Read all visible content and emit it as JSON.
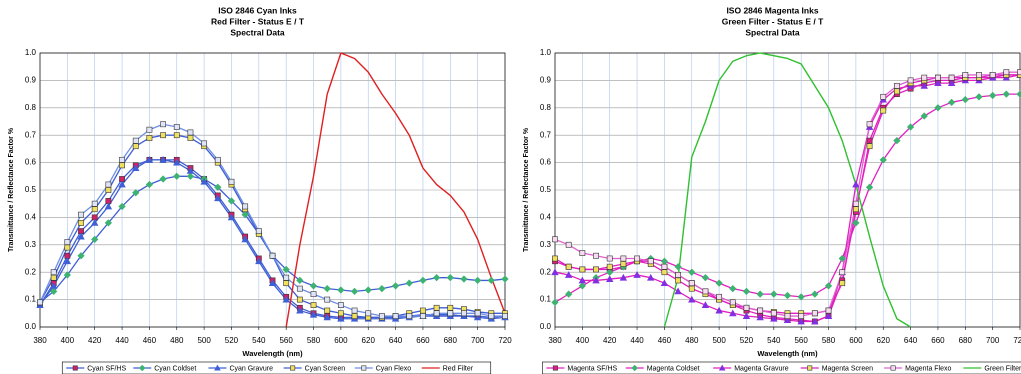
{
  "chart_data": [
    {
      "type": "line",
      "title": [
        "ISO 2846 Cyan Inks",
        "Red Filter - Status E / T",
        "Spectral Data"
      ],
      "x_label": "Wavelength (nm)",
      "y_label": "Transmittance / Reflectance Factor %",
      "x": [
        380,
        390,
        400,
        410,
        420,
        430,
        440,
        450,
        460,
        470,
        480,
        490,
        500,
        510,
        520,
        530,
        540,
        550,
        560,
        570,
        580,
        590,
        600,
        610,
        620,
        630,
        640,
        650,
        660,
        670,
        680,
        690,
        700,
        710,
        720
      ],
      "xlim": [
        380,
        720
      ],
      "xticks": [
        380,
        400,
        420,
        440,
        460,
        480,
        500,
        520,
        540,
        560,
        580,
        600,
        620,
        640,
        660,
        680,
        700,
        720
      ],
      "ylim": [
        0,
        1
      ],
      "yticks": [
        {
          "value": 0,
          "label": "0.0"
        },
        0.1,
        0.2,
        0.3,
        0.4,
        0.5,
        0.6,
        0.7,
        0.8,
        0.9,
        {
          "value": 1,
          "label": "1.0"
        }
      ],
      "grid": true,
      "legend": "bottom",
      "series": [
        {
          "name": "Cyan SF/HS",
          "color": "#3f5fd6",
          "marker": "square",
          "marker_color": "#d0206a",
          "values": [
            0.08,
            0.16,
            0.26,
            0.35,
            0.4,
            0.46,
            0.54,
            0.59,
            0.61,
            0.61,
            0.61,
            0.58,
            0.54,
            0.48,
            0.41,
            0.33,
            0.25,
            0.17,
            0.11,
            0.07,
            0.05,
            0.04,
            0.035,
            0.035,
            0.035,
            0.035,
            0.035,
            0.04,
            0.045,
            0.045,
            0.045,
            0.04,
            0.04,
            0.035,
            0.04
          ]
        },
        {
          "name": "Cyan Coldset",
          "color": "#3f5fd6",
          "marker": "diamond",
          "marker_color": "#3cb371",
          "values": [
            0.09,
            0.13,
            0.19,
            0.26,
            0.32,
            0.38,
            0.44,
            0.49,
            0.52,
            0.54,
            0.55,
            0.55,
            0.54,
            0.51,
            0.46,
            0.41,
            0.34,
            0.26,
            0.21,
            0.17,
            0.15,
            0.14,
            0.135,
            0.13,
            0.135,
            0.14,
            0.15,
            0.16,
            0.17,
            0.18,
            0.18,
            0.175,
            0.17,
            0.17,
            0.175
          ]
        },
        {
          "name": "Cyan Gravure",
          "color": "#3f5fd6",
          "marker": "triangle",
          "marker_color": "#3f5fd6",
          "values": [
            0.08,
            0.15,
            0.24,
            0.33,
            0.38,
            0.44,
            0.52,
            0.58,
            0.61,
            0.61,
            0.6,
            0.57,
            0.53,
            0.47,
            0.4,
            0.32,
            0.24,
            0.16,
            0.1,
            0.06,
            0.045,
            0.035,
            0.03,
            0.03,
            0.03,
            0.03,
            0.03,
            0.035,
            0.04,
            0.04,
            0.04,
            0.04,
            0.035,
            0.03,
            0.035
          ]
        },
        {
          "name": "Cyan Screen",
          "color": "#3f5fd6",
          "marker": "square",
          "marker_color": "#f0e060",
          "values": [
            0.09,
            0.18,
            0.29,
            0.38,
            0.43,
            0.5,
            0.59,
            0.66,
            0.69,
            0.7,
            0.7,
            0.69,
            0.66,
            0.6,
            0.52,
            0.43,
            0.34,
            0.26,
            0.16,
            0.1,
            0.08,
            0.06,
            0.05,
            0.04,
            0.035,
            0.035,
            0.04,
            0.05,
            0.06,
            0.07,
            0.07,
            0.065,
            0.055,
            0.05,
            0.05
          ]
        },
        {
          "name": "Cyan Flexo",
          "color": "#6f8fe6",
          "marker": "square",
          "marker_color": "#dfe5f7",
          "values": [
            0.09,
            0.2,
            0.31,
            0.41,
            0.45,
            0.52,
            0.61,
            0.68,
            0.72,
            0.74,
            0.73,
            0.71,
            0.67,
            0.61,
            0.53,
            0.44,
            0.35,
            0.26,
            0.18,
            0.14,
            0.12,
            0.1,
            0.08,
            0.06,
            0.05,
            0.04,
            0.04,
            0.04,
            0.04,
            0.05,
            0.05,
            0.05,
            0.05,
            0.04,
            0.04
          ]
        },
        {
          "name": "Red Filter",
          "color": "#e02020",
          "marker": "none",
          "values": [
            null,
            null,
            null,
            null,
            null,
            null,
            null,
            null,
            null,
            null,
            null,
            null,
            null,
            null,
            null,
            null,
            null,
            null,
            0.0,
            0.3,
            0.55,
            0.85,
            1.0,
            0.98,
            0.93,
            0.85,
            0.78,
            0.7,
            0.58,
            0.52,
            0.48,
            0.42,
            0.32,
            0.18,
            0.05
          ]
        }
      ]
    },
    {
      "type": "line",
      "title": [
        "ISO 2846 Magenta Inks",
        "Green Filter - Status E / T",
        "Spectral Data"
      ],
      "x_label": "Wavelength (nm)",
      "y_label": "Transmittance / Reflectance Factor %",
      "x": [
        380,
        390,
        400,
        410,
        420,
        430,
        440,
        450,
        460,
        470,
        480,
        490,
        500,
        510,
        520,
        530,
        540,
        550,
        560,
        570,
        580,
        590,
        600,
        610,
        620,
        630,
        640,
        650,
        660,
        670,
        680,
        690,
        700,
        710,
        720
      ],
      "xlim": [
        380,
        720
      ],
      "xticks": [
        380,
        400,
        420,
        440,
        460,
        480,
        500,
        520,
        540,
        560,
        580,
        600,
        620,
        640,
        660,
        680,
        700,
        720
      ],
      "ylim": [
        0,
        1
      ],
      "yticks": [
        {
          "value": 0,
          "label": "0.0"
        },
        0.1,
        0.2,
        0.3,
        0.4,
        0.5,
        0.6,
        0.7,
        0.8,
        0.9,
        {
          "value": 1,
          "label": "1.0"
        }
      ],
      "grid": true,
      "legend": "bottom",
      "series": [
        {
          "name": "Magenta SF/HS",
          "color": "#e020c0",
          "marker": "square",
          "marker_color": "#e02080",
          "values": [
            0.24,
            0.22,
            0.21,
            0.21,
            0.21,
            0.22,
            0.24,
            0.24,
            0.22,
            0.19,
            0.16,
            0.13,
            0.1,
            0.08,
            0.06,
            0.045,
            0.035,
            0.03,
            0.025,
            0.02,
            0.04,
            0.17,
            0.42,
            0.68,
            0.8,
            0.85,
            0.87,
            0.89,
            0.9,
            0.9,
            0.91,
            0.91,
            0.91,
            0.92,
            0.92
          ]
        },
        {
          "name": "Magenta Coldset",
          "color": "#e020c0",
          "marker": "diamond",
          "marker_color": "#3cb371",
          "values": [
            0.09,
            0.12,
            0.15,
            0.18,
            0.2,
            0.22,
            0.24,
            0.25,
            0.24,
            0.22,
            0.2,
            0.18,
            0.16,
            0.14,
            0.13,
            0.12,
            0.12,
            0.115,
            0.11,
            0.12,
            0.15,
            0.25,
            0.38,
            0.51,
            0.61,
            0.68,
            0.73,
            0.77,
            0.8,
            0.82,
            0.83,
            0.84,
            0.845,
            0.85,
            0.85
          ]
        },
        {
          "name": "Magenta Gravure",
          "color": "#e020c0",
          "marker": "triangle",
          "marker_color": "#8030e0",
          "values": [
            0.2,
            0.19,
            0.17,
            0.17,
            0.175,
            0.18,
            0.19,
            0.18,
            0.16,
            0.13,
            0.1,
            0.08,
            0.06,
            0.05,
            0.04,
            0.035,
            0.03,
            0.025,
            0.02,
            0.02,
            0.04,
            0.2,
            0.52,
            0.73,
            0.83,
            0.87,
            0.88,
            0.88,
            0.89,
            0.89,
            0.9,
            0.9,
            0.91,
            0.91,
            0.92
          ]
        },
        {
          "name": "Magenta Screen",
          "color": "#e020c0",
          "marker": "square",
          "marker_color": "#f0e060",
          "values": [
            0.25,
            0.22,
            0.21,
            0.21,
            0.22,
            0.23,
            0.24,
            0.23,
            0.2,
            0.17,
            0.14,
            0.12,
            0.1,
            0.08,
            0.07,
            0.06,
            0.055,
            0.05,
            0.05,
            0.05,
            0.06,
            0.16,
            0.43,
            0.66,
            0.79,
            0.86,
            0.89,
            0.9,
            0.91,
            0.91,
            0.91,
            0.91,
            0.92,
            0.92,
            0.92
          ]
        },
        {
          "name": "Magenta Flexo",
          "color": "#e060d0",
          "marker": "square",
          "marker_color": "#f5dcf0",
          "values": [
            0.32,
            0.3,
            0.27,
            0.26,
            0.25,
            0.25,
            0.25,
            0.24,
            0.22,
            0.19,
            0.16,
            0.13,
            0.11,
            0.09,
            0.07,
            0.06,
            0.05,
            0.04,
            0.04,
            0.05,
            0.06,
            0.2,
            0.45,
            0.74,
            0.84,
            0.88,
            0.9,
            0.91,
            0.91,
            0.91,
            0.92,
            0.92,
            0.92,
            0.93,
            0.93
          ]
        },
        {
          "name": "Green Filter",
          "color": "#30c030",
          "marker": "none",
          "values": [
            null,
            null,
            null,
            null,
            null,
            null,
            null,
            null,
            0.0,
            0.18,
            0.62,
            0.75,
            0.9,
            0.97,
            0.99,
            1.0,
            0.99,
            0.98,
            0.96,
            0.88,
            0.8,
            0.68,
            0.52,
            0.33,
            0.15,
            0.03,
            0.0,
            null,
            null,
            null,
            null,
            null,
            null,
            null,
            null
          ]
        }
      ]
    }
  ]
}
